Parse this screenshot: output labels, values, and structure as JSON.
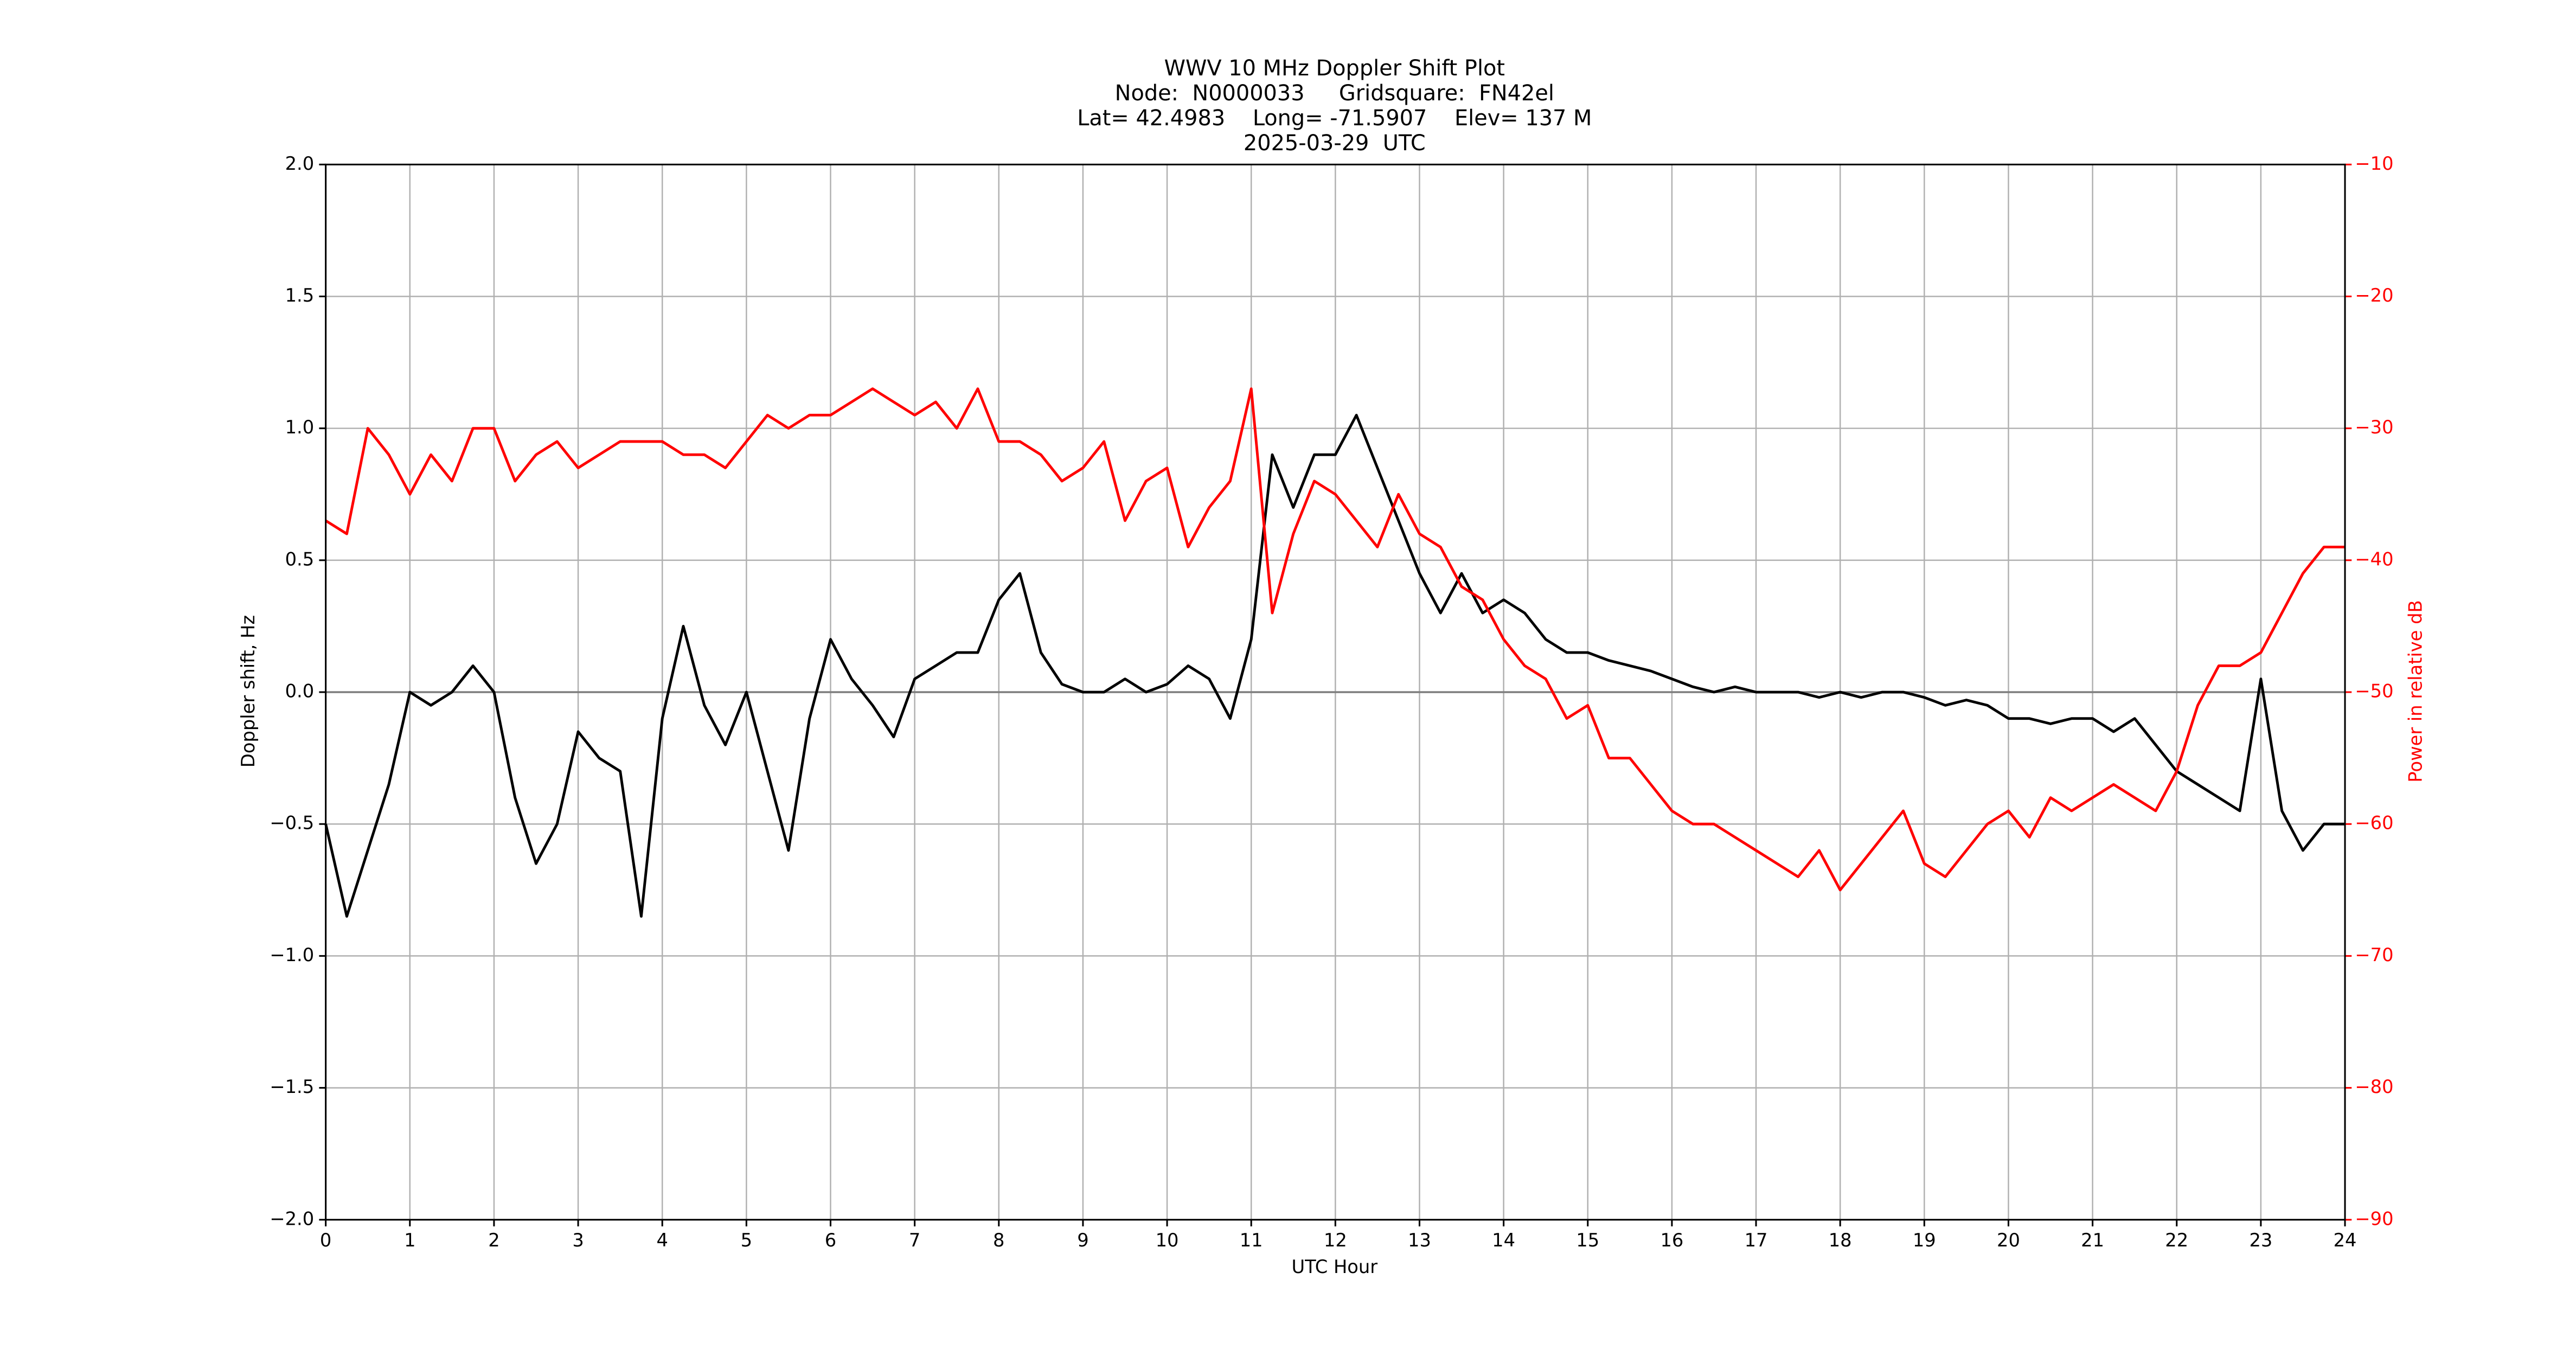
{
  "chart_data": {
    "type": "line",
    "title": [
      "WWV 10 MHz Doppler Shift Plot",
      "Node:  N0000033     Gridsquare:  FN42el",
      "Lat= 42.4983    Long= -71.5907    Elev= 137 M",
      "2025-03-29  UTC"
    ],
    "x_label": "UTC Hour",
    "y_label": "Doppler shift, Hz",
    "y2_label": "Power in relative dB",
    "x": [
      0,
      0.25,
      0.5,
      0.75,
      1,
      1.25,
      1.5,
      1.75,
      2,
      2.25,
      2.5,
      2.75,
      3,
      3.25,
      3.5,
      3.75,
      4,
      4.25,
      4.5,
      4.75,
      5,
      5.25,
      5.5,
      5.75,
      6,
      6.25,
      6.5,
      6.75,
      7,
      7.25,
      7.5,
      7.75,
      8,
      8.25,
      8.5,
      8.75,
      9,
      9.25,
      9.5,
      9.75,
      10,
      10.25,
      10.5,
      10.75,
      11,
      11.25,
      11.5,
      11.75,
      12,
      12.25,
      12.5,
      12.75,
      13,
      13.25,
      13.5,
      13.75,
      14,
      14.25,
      14.5,
      14.75,
      15,
      15.25,
      15.5,
      15.75,
      16,
      16.25,
      16.5,
      16.75,
      17,
      17.25,
      17.5,
      17.75,
      18,
      18.25,
      18.5,
      18.75,
      19,
      19.25,
      19.5,
      19.75,
      20,
      20.25,
      20.5,
      20.75,
      21,
      21.25,
      21.5,
      21.75,
      22,
      22.25,
      22.5,
      22.75,
      23,
      23.25,
      23.5,
      23.75,
      24
    ],
    "series": [
      {
        "color": "#000000",
        "values": [
          -0.5,
          -0.85,
          -0.6,
          -0.35,
          0.0,
          -0.05,
          0.0,
          0.1,
          0.0,
          -0.4,
          -0.65,
          -0.5,
          -0.15,
          -0.25,
          -0.3,
          -0.85,
          -0.1,
          0.25,
          -0.05,
          -0.2,
          0.0,
          -0.3,
          -0.6,
          -0.1,
          0.2,
          0.05,
          -0.05,
          -0.17,
          0.05,
          0.1,
          0.15,
          0.15,
          0.35,
          0.45,
          0.15,
          0.03,
          0.0,
          0.0,
          0.05,
          0.0,
          0.03,
          0.1,
          0.05,
          -0.1,
          0.2,
          0.9,
          0.7,
          0.9,
          0.9,
          1.05,
          0.85,
          0.65,
          0.45,
          0.3,
          0.45,
          0.3,
          0.35,
          0.3,
          0.2,
          0.15,
          0.15,
          0.12,
          0.1,
          0.08,
          0.05,
          0.02,
          0.0,
          0.02,
          0.0,
          0.0,
          0.0,
          -0.02,
          0.0,
          -0.02,
          0.0,
          0.0,
          -0.02,
          -0.05,
          -0.03,
          -0.05,
          -0.1,
          -0.1,
          -0.12,
          -0.1,
          -0.1,
          -0.15,
          -0.1,
          -0.2,
          -0.3,
          -0.35,
          -0.4,
          -0.45,
          0.05,
          -0.45,
          -0.6,
          -0.5,
          -0.5
        ]
      },
      {
        "color": "#ff0000",
        "axis": "y2",
        "values": [
          -37,
          -38,
          -30,
          -32,
          -35,
          -32,
          -34,
          -30,
          -30,
          -34,
          -32,
          -31,
          -33,
          -32,
          -31,
          -31,
          -31,
          -32,
          -32,
          -33,
          -31,
          -29,
          -30,
          -29,
          -29,
          -28,
          -27,
          -28,
          -29,
          -28,
          -30,
          -27,
          -31,
          -31,
          -32,
          -34,
          -33,
          -31,
          -37,
          -34,
          -33,
          -39,
          -36,
          -34,
          -27,
          -44,
          -38,
          -34,
          -35,
          -37,
          -39,
          -35,
          -38,
          -39,
          -42,
          -43,
          -46,
          -48,
          -49,
          -52,
          -51,
          -55,
          -55,
          -57,
          -59,
          -60,
          -60,
          -61,
          -62,
          -63,
          -64,
          -62,
          -65,
          -63,
          -61,
          -59,
          -63,
          -64,
          -62,
          -60,
          -59,
          -61,
          -58,
          -59,
          -58,
          -57,
          -58,
          -59,
          -56,
          -51,
          -48,
          -48,
          -47,
          -44,
          -41,
          -39,
          -39
        ]
      }
    ],
    "xlim": [
      0,
      24
    ],
    "xticks": [
      0,
      1,
      2,
      3,
      4,
      5,
      6,
      7,
      8,
      9,
      10,
      11,
      12,
      13,
      14,
      15,
      16,
      17,
      18,
      19,
      20,
      21,
      22,
      23,
      24
    ],
    "ylim": [
      -2,
      2
    ],
    "yticks": [
      {
        "value": -2,
        "label": "−2.0"
      },
      {
        "value": -1.5,
        "label": "−1.5"
      },
      {
        "value": -1,
        "label": "−1.0"
      },
      {
        "value": -0.5,
        "label": "−0.5"
      },
      {
        "value": 0,
        "label": "0.0"
      },
      {
        "value": 0.5,
        "label": "0.5"
      },
      {
        "value": 1,
        "label": "1.0"
      },
      {
        "value": 1.5,
        "label": "1.5"
      },
      {
        "value": 2,
        "label": "2.0"
      }
    ],
    "y2lim": [
      -90,
      -10
    ],
    "y2ticks": [
      {
        "value": -90,
        "label": "−90"
      },
      {
        "value": -80,
        "label": "−80"
      },
      {
        "value": -70,
        "label": "−70"
      },
      {
        "value": -60,
        "label": "−60"
      },
      {
        "value": -50,
        "label": "−50"
      },
      {
        "value": -40,
        "label": "−40"
      },
      {
        "value": -30,
        "label": "−30"
      },
      {
        "value": -20,
        "label": "−20"
      },
      {
        "value": -10,
        "label": "−10"
      }
    ],
    "y2_color": "#ff0000",
    "grid": true
  }
}
